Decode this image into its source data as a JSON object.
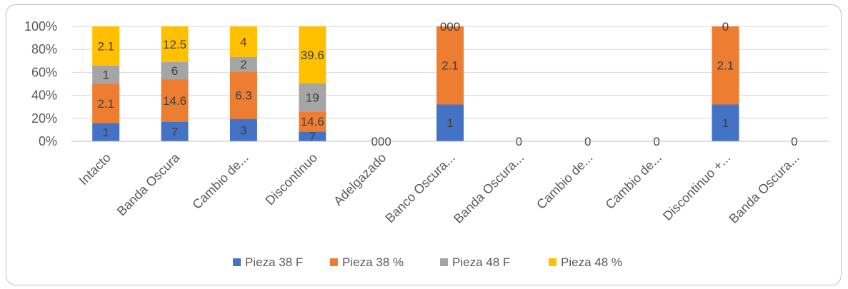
{
  "chart_data": {
    "type": "bar",
    "stacked": "percent",
    "categories": [
      "Intacto",
      "Banda Oscura",
      "Cambio de...",
      "Discontinuo",
      "Adelgazado",
      "Banco Oscura...",
      "Banda Oscura...",
      "Cambio de...",
      "Cambio de...",
      "Discontinuo +...",
      "Banda Oscura..."
    ],
    "y_ticks": [
      "0%",
      "20%",
      "40%",
      "60%",
      "80%",
      "100%"
    ],
    "ylim": [
      0,
      100
    ],
    "grid": true,
    "legend_position": "bottom",
    "series": [
      {
        "name": "Pieza 38 F",
        "color": "#4472c4",
        "values": [
          1,
          7,
          3,
          7,
          0,
          1,
          0,
          0,
          0,
          1,
          0
        ],
        "percent_heights": [
          16,
          17,
          19.5,
          8.5,
          0,
          32,
          0,
          0,
          0,
          32,
          0
        ]
      },
      {
        "name": "Pieza 38 %",
        "color": "#ed7d31",
        "values": [
          2.1,
          14.6,
          6.3,
          14.6,
          0,
          2.1,
          0,
          0,
          0,
          2.1,
          0
        ],
        "percent_heights": [
          34,
          37,
          41,
          17.5,
          0,
          68,
          0,
          0,
          0,
          68,
          0
        ]
      },
      {
        "name": "Pieza 48 F",
        "color": "#a5a5a5",
        "values": [
          1,
          6,
          2,
          19,
          0,
          0,
          0,
          0,
          0,
          0,
          0
        ],
        "percent_heights": [
          16,
          15,
          13,
          24.5,
          0,
          0,
          0,
          0,
          0,
          0,
          0
        ]
      },
      {
        "name": "Pieza 48 %",
        "color": "#ffc000",
        "values": [
          2.1,
          12.5,
          4,
          39.6,
          0,
          0,
          0,
          0,
          0,
          0,
          0
        ],
        "percent_heights": [
          34,
          31,
          26.5,
          49.5,
          0,
          0,
          0,
          0,
          0,
          0,
          0
        ]
      }
    ],
    "zero_labels": [
      "",
      "",
      "",
      "",
      "000",
      "000",
      "0",
      "0",
      "0",
      "0",
      "0"
    ]
  }
}
